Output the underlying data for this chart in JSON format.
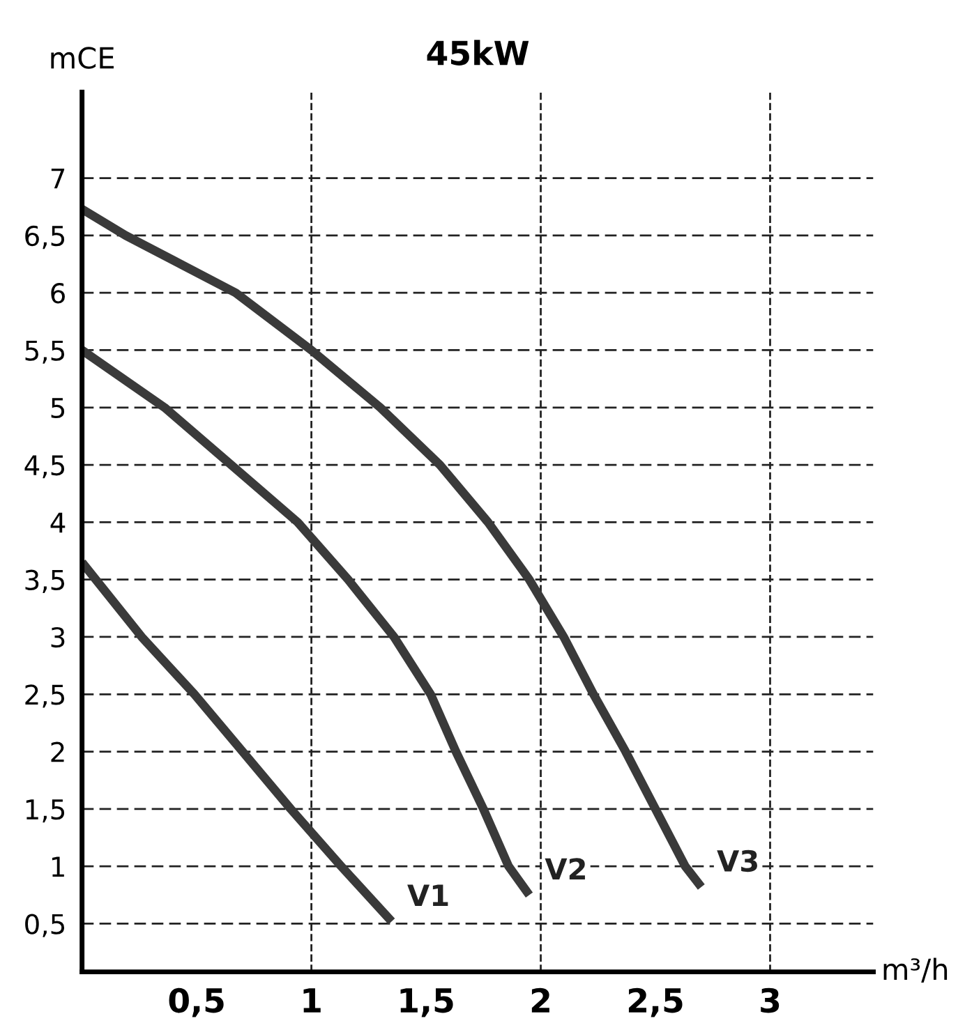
{
  "chart_data": {
    "type": "line",
    "title": "45kW",
    "xlabel": "m³/h",
    "ylabel": "mCE",
    "xlim": [
      0,
      3.45
    ],
    "ylim": [
      0.08,
      7.75
    ],
    "xticks": [
      {
        "value": 0.5,
        "label": "0,5"
      },
      1,
      {
        "value": 1.5,
        "label": "1,5"
      },
      2,
      {
        "value": 2.5,
        "label": "2,5"
      },
      3
    ],
    "yticks": [
      {
        "value": 0.5,
        "label": "0,5"
      },
      1,
      {
        "value": 1.5,
        "label": "1,5"
      },
      2,
      {
        "value": 2.5,
        "label": "2,5"
      },
      3,
      {
        "value": 3.5,
        "label": "3,5"
      },
      4,
      {
        "value": 4.5,
        "label": "4,5"
      },
      5,
      {
        "value": 5.5,
        "label": "5,5"
      },
      6,
      {
        "value": 6.5,
        "label": "6,5"
      },
      7
    ],
    "grid": "y",
    "marker": "none",
    "line_style": "solid",
    "ref_lines": [
      {
        "axis": "x",
        "value": 1,
        "line_style": "dashed",
        "color": "#222222"
      },
      {
        "axis": "x",
        "value": 2,
        "line_style": "dashed",
        "color": "#222222"
      },
      {
        "axis": "x",
        "value": 3,
        "line_style": "dashed",
        "color": "#222222"
      }
    ],
    "series": [
      {
        "name": "V1",
        "color": "#3a3a3a",
        "x": [
          0,
          0.26,
          0.49,
          0.7,
          0.91,
          1.13,
          1.35
        ],
        "values": [
          3.65,
          3,
          2.5,
          2,
          1.5,
          1,
          0.52
        ]
      },
      {
        "name": "V2",
        "color": "#3a3a3a",
        "x": [
          0,
          0.36,
          0.65,
          0.94,
          1.16,
          1.36,
          1.52,
          1.63,
          1.75,
          1.86,
          1.95
        ],
        "values": [
          5.5,
          5,
          4.5,
          4,
          3.5,
          3,
          2.5,
          2,
          1.5,
          1,
          0.75
        ]
      },
      {
        "name": "V3",
        "color": "#3a3a3a",
        "x": [
          0,
          0.19,
          0.67,
          1.0,
          1.3,
          1.56,
          1.77,
          1.95,
          2.1,
          2.23,
          2.37,
          2.5,
          2.63,
          2.7
        ],
        "values": [
          6.73,
          6.5,
          6,
          5.5,
          5,
          4.5,
          4,
          3.5,
          3,
          2.5,
          2,
          1.5,
          1,
          0.82
        ]
      }
    ]
  }
}
